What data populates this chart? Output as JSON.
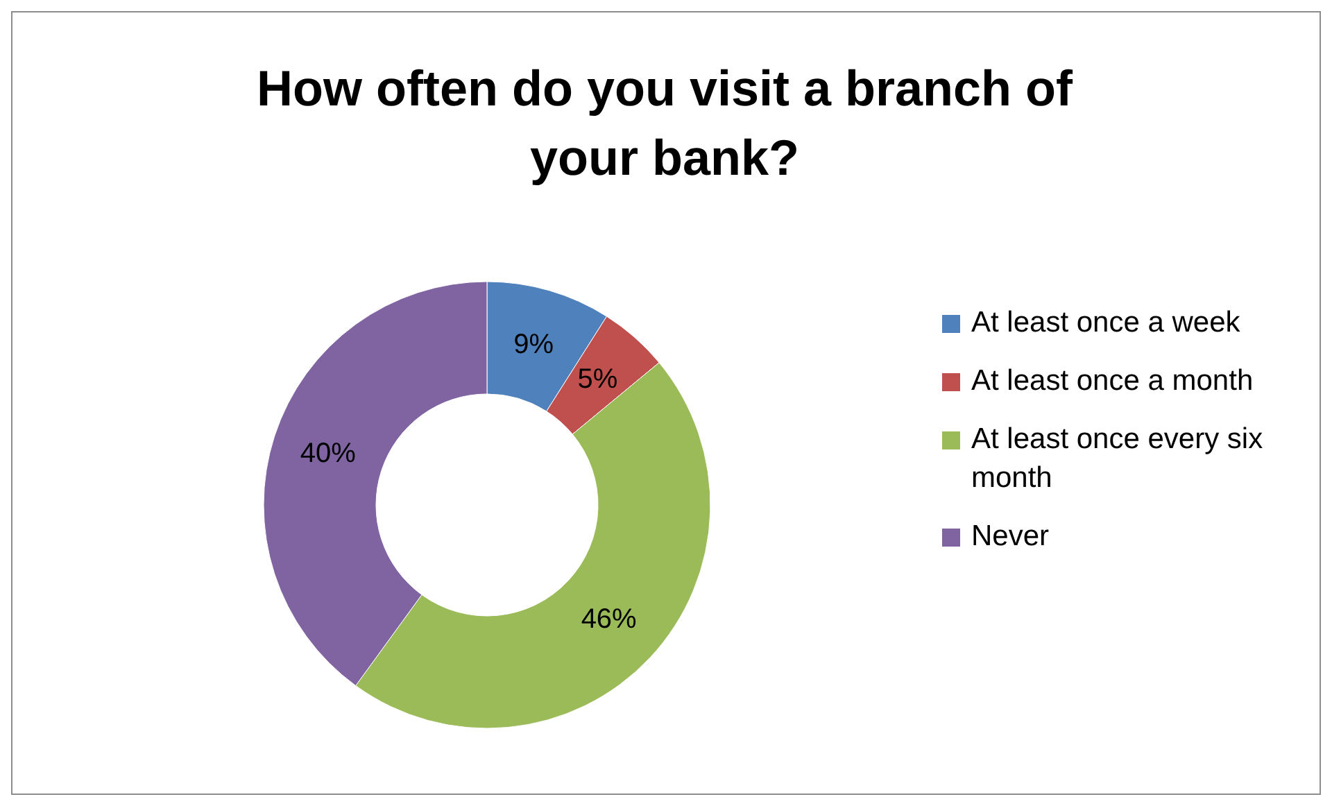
{
  "chart_data": {
    "type": "donut",
    "title": "How often do you visit a branch of your bank?",
    "categories": [
      "At least once a week",
      "At least once a month",
      "At least once every six month",
      "Never"
    ],
    "values": [
      9,
      5,
      46,
      40
    ],
    "colors": [
      "#4f81bd",
      "#c0504d",
      "#9bbb59",
      "#8064a2"
    ],
    "value_labels": [
      "9%",
      "5%",
      "46%",
      "40%"
    ],
    "legend": "right"
  }
}
